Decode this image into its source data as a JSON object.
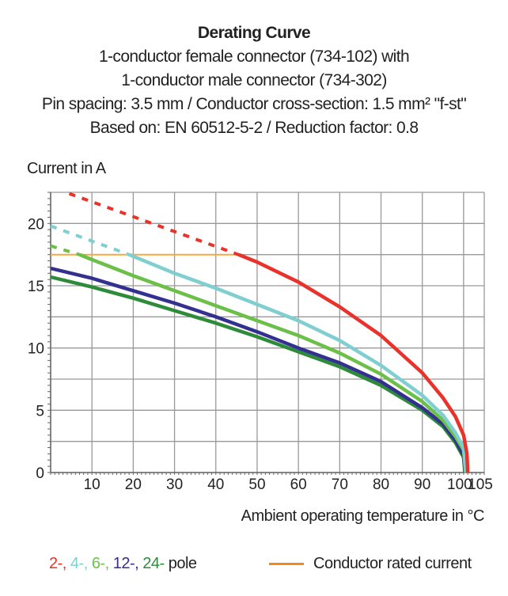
{
  "chart_data": {
    "type": "line",
    "title": "Derating Curve",
    "subtitle": [
      "1-conductor female connector (734-102) with",
      "1-conductor male connector (734-302)",
      "Pin spacing: 3.5 mm / Conductor cross-section: 1.5 mm² \"f-st\"",
      "Based on: EN 60512-5-2 / Reduction factor: 0.8"
    ],
    "xlabel": "Ambient operating temperature in °C",
    "ylabel": "Current in A",
    "xlim": [
      0,
      105
    ],
    "ylim": [
      0,
      22.5
    ],
    "xticks": [
      10,
      20,
      30,
      40,
      50,
      60,
      70,
      80,
      90,
      100,
      105
    ],
    "yticks": [
      0,
      5,
      10,
      15,
      20
    ],
    "grid": true,
    "series": [
      {
        "name": "2-",
        "color": "#e8322a",
        "dashed": [
          [
            4.5,
            22.4
          ],
          [
            45.5,
            17.5
          ]
        ],
        "points": [
          [
            45.5,
            17.5
          ],
          [
            50,
            16.9
          ],
          [
            60,
            15.3
          ],
          [
            70,
            13.3
          ],
          [
            80,
            11.0
          ],
          [
            90,
            8.0
          ],
          [
            95,
            6.0
          ],
          [
            98,
            4.5
          ],
          [
            100,
            3.0
          ],
          [
            100.8,
            1.5
          ],
          [
            101,
            0
          ]
        ]
      },
      {
        "name": "4-",
        "color": "#7fcfd0",
        "dashed": [
          [
            0,
            19.8
          ],
          [
            19,
            17.5
          ]
        ],
        "points": [
          [
            19,
            17.5
          ],
          [
            30,
            16.0
          ],
          [
            40,
            14.8
          ],
          [
            50,
            13.5
          ],
          [
            60,
            12.2
          ],
          [
            70,
            10.6
          ],
          [
            80,
            8.6
          ],
          [
            90,
            6.2
          ],
          [
            95,
            4.6
          ],
          [
            98,
            3.2
          ],
          [
            100,
            2.0
          ],
          [
            100.6,
            0
          ]
        ]
      },
      {
        "name": "6-",
        "color": "#6cc04a",
        "dashed": [
          [
            0,
            18.2
          ],
          [
            7,
            17.5
          ]
        ],
        "points": [
          [
            7,
            17.5
          ],
          [
            10,
            17.1
          ],
          [
            20,
            15.8
          ],
          [
            30,
            14.6
          ],
          [
            40,
            13.4
          ],
          [
            50,
            12.2
          ],
          [
            60,
            11.0
          ],
          [
            70,
            9.6
          ],
          [
            80,
            7.9
          ],
          [
            90,
            5.7
          ],
          [
            95,
            4.2
          ],
          [
            98,
            2.9
          ],
          [
            100,
            1.8
          ],
          [
            100.5,
            0
          ]
        ]
      },
      {
        "name": "12-",
        "color": "#33308f",
        "dashed": null,
        "points": [
          [
            0,
            16.4
          ],
          [
            10,
            15.6
          ],
          [
            20,
            14.6
          ],
          [
            30,
            13.6
          ],
          [
            40,
            12.5
          ],
          [
            50,
            11.3
          ],
          [
            60,
            10.0
          ],
          [
            70,
            8.8
          ],
          [
            80,
            7.3
          ],
          [
            90,
            5.2
          ],
          [
            95,
            3.9
          ],
          [
            98,
            2.6
          ],
          [
            100,
            1.4
          ],
          [
            100.4,
            0
          ]
        ]
      },
      {
        "name": "24-",
        "color": "#2e8b3a",
        "dashed": null,
        "points": [
          [
            0,
            15.7
          ],
          [
            10,
            14.9
          ],
          [
            20,
            14.0
          ],
          [
            30,
            13.0
          ],
          [
            40,
            12.0
          ],
          [
            50,
            10.9
          ],
          [
            60,
            9.7
          ],
          [
            70,
            8.5
          ],
          [
            80,
            7.0
          ],
          [
            90,
            5.0
          ],
          [
            95,
            3.7
          ],
          [
            98,
            2.4
          ],
          [
            100,
            1.2
          ],
          [
            100.3,
            0
          ]
        ]
      },
      {
        "name": "Conductor rated current",
        "color": "#f7a840",
        "dashed": null,
        "points": [
          [
            0,
            17.5
          ],
          [
            45.5,
            17.5
          ]
        ]
      }
    ],
    "legend": {
      "items": [
        {
          "text": "2-,",
          "color": "#e8322a"
        },
        {
          "text": "4-,",
          "color": "#7fcfd0"
        },
        {
          "text": "6-,",
          "color": "#6cc04a"
        },
        {
          "text": "12-,",
          "color": "#33308f"
        },
        {
          "text": "24-",
          "color": "#2e8b3a"
        }
      ],
      "suffix": "pole",
      "rated_label": "Conductor rated current",
      "placement": "bottom"
    }
  }
}
